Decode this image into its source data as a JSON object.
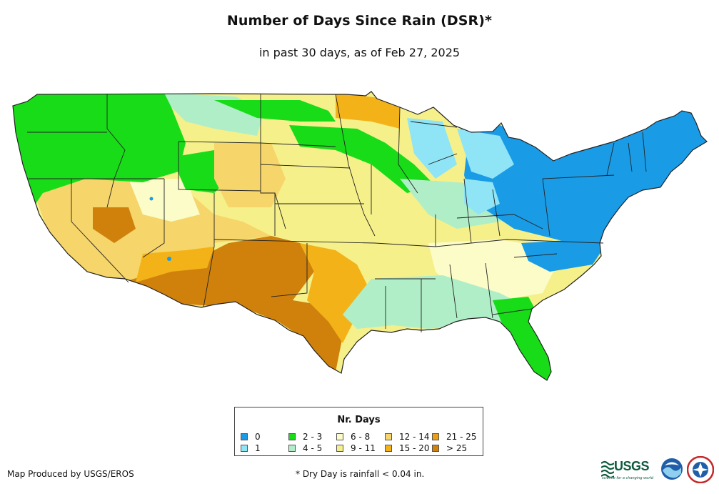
{
  "title": "Number of Days Since Rain (DSR)*",
  "subtitle": "in past 30 days, as of Feb 27, 2025",
  "legend": {
    "title": "Nr. Days",
    "items": [
      {
        "label": "0",
        "color": "#1a9be6"
      },
      {
        "label": "1",
        "color": "#8fe4f5"
      },
      {
        "label": "2 - 3",
        "color": "#18dc18"
      },
      {
        "label": "4 - 5",
        "color": "#b0eec8"
      },
      {
        "label": "6 - 8",
        "color": "#fbfcc8"
      },
      {
        "label": "9 - 11",
        "color": "#f6f08a"
      },
      {
        "label": "12 - 14",
        "color": "#f6d56a"
      },
      {
        "label": "15 - 20",
        "color": "#f3b318"
      },
      {
        "label": "21 - 25",
        "color": "#ec9f12"
      },
      {
        "label": "> 25",
        "color": "#cf810c"
      }
    ]
  },
  "credit": "Map Produced by USGS/EROS",
  "footnote": "* Dry Day is rainfall < 0.04 in.",
  "logos": {
    "usgs": "USGS",
    "usgs_tagline": "science for a changing world"
  }
}
